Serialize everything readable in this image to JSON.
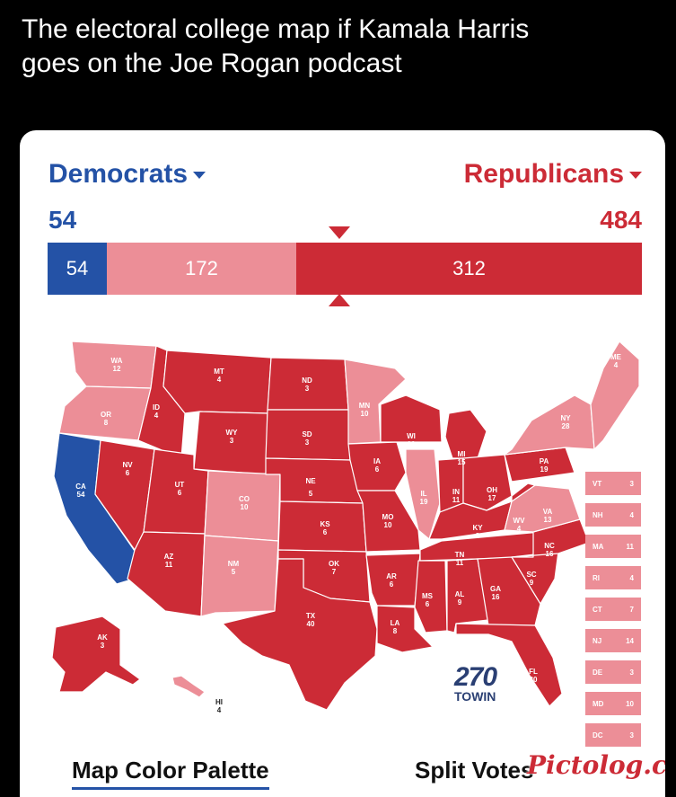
{
  "tweet": {
    "text_line1": "The electoral college map if Kamala Harris",
    "text_line2": "goes on the Joe Rogan podcast"
  },
  "header": {
    "dem_label": "Democrats",
    "rep_label": "Republicans",
    "dem_total": "54",
    "rep_total": "484"
  },
  "bar": {
    "dem": "54",
    "lean": "172",
    "rep": "312"
  },
  "colors": {
    "safe_dem": "#2452a6",
    "lean_rep": "#ec8e97",
    "safe_rep": "#cc2b36"
  },
  "states": [
    {
      "abbr": "WA",
      "ev": "12"
    },
    {
      "abbr": "OR",
      "ev": "8"
    },
    {
      "abbr": "CA",
      "ev": "54"
    },
    {
      "abbr": "NV",
      "ev": "6"
    },
    {
      "abbr": "ID",
      "ev": "4"
    },
    {
      "abbr": "MT",
      "ev": "4"
    },
    {
      "abbr": "WY",
      "ev": "3"
    },
    {
      "abbr": "UT",
      "ev": "6"
    },
    {
      "abbr": "AZ",
      "ev": "11"
    },
    {
      "abbr": "CO",
      "ev": "10"
    },
    {
      "abbr": "NM",
      "ev": "5"
    },
    {
      "abbr": "ND",
      "ev": "3"
    },
    {
      "abbr": "SD",
      "ev": "3"
    },
    {
      "abbr": "NE",
      "ev": "5"
    },
    {
      "abbr": "KS",
      "ev": "6"
    },
    {
      "abbr": "OK",
      "ev": "7"
    },
    {
      "abbr": "TX",
      "ev": "40"
    },
    {
      "abbr": "MN",
      "ev": "10"
    },
    {
      "abbr": "IA",
      "ev": "6"
    },
    {
      "abbr": "MO",
      "ev": "10"
    },
    {
      "abbr": "AR",
      "ev": "6"
    },
    {
      "abbr": "LA",
      "ev": "8"
    },
    {
      "abbr": "WI",
      "ev": "10"
    },
    {
      "abbr": "IL",
      "ev": "19"
    },
    {
      "abbr": "MI",
      "ev": "15"
    },
    {
      "abbr": "IN",
      "ev": "11"
    },
    {
      "abbr": "OH",
      "ev": "17"
    },
    {
      "abbr": "KY",
      "ev": "8"
    },
    {
      "abbr": "TN",
      "ev": "11"
    },
    {
      "abbr": "MS",
      "ev": "6"
    },
    {
      "abbr": "AL",
      "ev": "9"
    },
    {
      "abbr": "GA",
      "ev": "16"
    },
    {
      "abbr": "FL",
      "ev": "30"
    },
    {
      "abbr": "SC",
      "ev": "9"
    },
    {
      "abbr": "NC",
      "ev": "16"
    },
    {
      "abbr": "VA",
      "ev": "13"
    },
    {
      "abbr": "WV",
      "ev": "4"
    },
    {
      "abbr": "PA",
      "ev": "19"
    },
    {
      "abbr": "NY",
      "ev": "28"
    },
    {
      "abbr": "ME",
      "ev": "4"
    },
    {
      "abbr": "AK",
      "ev": "3"
    },
    {
      "abbr": "HI",
      "ev": "4"
    }
  ],
  "small_states": [
    {
      "abbr": "VT",
      "ev": "3"
    },
    {
      "abbr": "NH",
      "ev": "4"
    },
    {
      "abbr": "MA",
      "ev": "11"
    },
    {
      "abbr": "RI",
      "ev": "4"
    },
    {
      "abbr": "CT",
      "ev": "7"
    },
    {
      "abbr": "NJ",
      "ev": "14"
    },
    {
      "abbr": "DE",
      "ev": "3"
    },
    {
      "abbr": "MD",
      "ev": "10"
    },
    {
      "abbr": "DC",
      "ev": "3"
    }
  ],
  "logo": {
    "number": "270",
    "sub": "TOWIN"
  },
  "footer": {
    "left": "Map Color Palette",
    "right": "Split Votes"
  },
  "watermark": "Pictolog.com"
}
